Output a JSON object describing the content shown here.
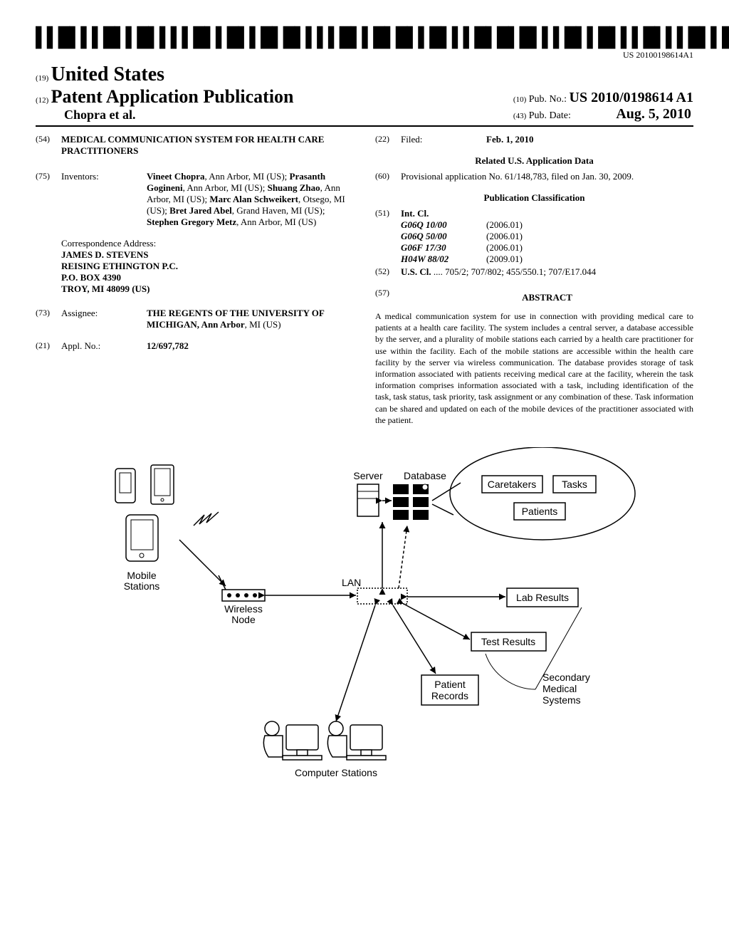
{
  "barcode_number": "US 20100198614A1",
  "country_code": "(19)",
  "country": "United States",
  "pub_code": "(12)",
  "pub_title": "Patent Application Publication",
  "authors_line": "Chopra et al.",
  "pubno_code": "(10)",
  "pubno_label": "Pub. No.:",
  "pubno_value": "US 2010/0198614 A1",
  "pubdate_code": "(43)",
  "pubdate_label": "Pub. Date:",
  "pubdate_value": "Aug. 5, 2010",
  "title_code": "(54)",
  "title": "MEDICAL COMMUNICATION SYSTEM FOR HEALTH CARE PRACTITIONERS",
  "inventors_code": "(75)",
  "inventors_label": "Inventors:",
  "inventors_value": "Vineet Chopra, Ann Arbor, MI (US); Prasanth Gogineni, Ann Arbor, MI (US); Shuang Zhao, Ann Arbor, MI (US); Marc Alan Schweikert, Otsego, MI (US); Bret Jared Abel, Grand Haven, MI (US); Stephen Gregory Metz, Ann Arbor, MI (US)",
  "correspondence_label": "Correspondence Address:",
  "correspondence_value": "JAMES D. STEVENS\nREISING ETHINGTON P.C.\nP.O. BOX 4390\nTROY, MI 48099 (US)",
  "assignee_code": "(73)",
  "assignee_label": "Assignee:",
  "assignee_value": "THE REGENTS OF THE UNIVERSITY OF MICHIGAN, Ann Arbor, MI (US)",
  "applno_code": "(21)",
  "applno_label": "Appl. No.:",
  "applno_value": "12/697,782",
  "filed_code": "(22)",
  "filed_label": "Filed:",
  "filed_value": "Feb. 1, 2010",
  "related_heading": "Related U.S. Application Data",
  "provisional_code": "(60)",
  "provisional_value": "Provisional application No. 61/148,783, filed on Jan. 30, 2009.",
  "classification_heading": "Publication Classification",
  "intcl_code": "(51)",
  "intcl_label": "Int. Cl.",
  "intcl_rows": [
    {
      "code": "G06Q 10/00",
      "year": "(2006.01)"
    },
    {
      "code": "G06Q 50/00",
      "year": "(2006.01)"
    },
    {
      "code": "G06F 17/30",
      "year": "(2006.01)"
    },
    {
      "code": "H04W 88/02",
      "year": "(2009.01)"
    }
  ],
  "uscl_code": "(52)",
  "uscl_label": "U.S. Cl.",
  "uscl_value": ".... 705/2; 707/802; 455/550.1; 707/E17.044",
  "abstract_code": "(57)",
  "abstract_heading": "ABSTRACT",
  "abstract_text": "A medical communication system for use in connection with providing medical care to patients at a health care facility. The system includes a central server, a database accessible by the server, and a plurality of mobile stations each carried by a health care practitioner for use within the facility. Each of the mobile stations are accessible within the health care facility by the server via wireless communication. The database provides storage of task information associated with patients receiving medical care at the facility, wherein the task information comprises information associated with a task, including identification of the task, task status, task priority, task assignment or any combination of these. Task information can be shared and updated on each of the mobile devices of the practitioner associated with the patient.",
  "figure": {
    "labels": {
      "mobile_stations": "Mobile\nStations",
      "wireless_node": "Wireless\nNode",
      "server": "Server",
      "database": "Database",
      "lan": "LAN",
      "caretakers": "Caretakers",
      "tasks": "Tasks",
      "patients": "Patients",
      "lab_results": "Lab Results",
      "test_results": "Test Results",
      "patient_records": "Patient\nRecords",
      "secondary": "Secondary\nMedical\nSystems",
      "computer_stations": "Computer Stations"
    }
  }
}
